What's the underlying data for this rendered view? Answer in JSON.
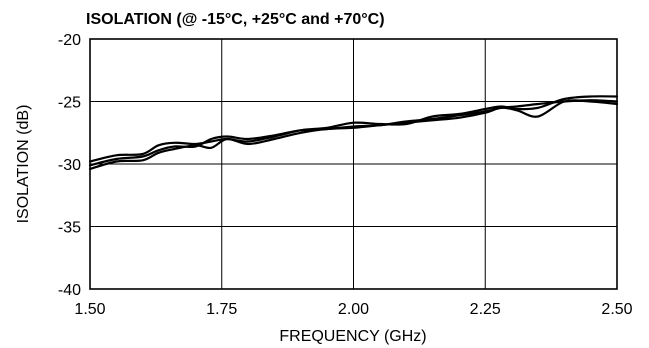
{
  "chart_data": {
    "type": "line",
    "title": "ISOLATION (@ -15°C, +25°C and +70°C)",
    "xlabel": "FREQUENCY (GHz)",
    "ylabel": "ISOLATION (dB)",
    "xlim": [
      1.5,
      2.5
    ],
    "ylim": [
      -40,
      -20
    ],
    "x_ticks": [
      "1.50",
      "1.75",
      "2.00",
      "2.25",
      "2.50"
    ],
    "y_ticks": [
      "-20",
      "-25",
      "-30",
      "-35",
      "-40"
    ],
    "x_tick_values": [
      1.5,
      1.75,
      2.0,
      2.25,
      2.5
    ],
    "y_tick_values": [
      -20,
      -25,
      -30,
      -35,
      -40
    ],
    "grid": true,
    "series": [
      {
        "x": [
          1.5,
          1.55,
          1.6,
          1.63,
          1.66,
          1.7,
          1.73,
          1.76,
          1.8,
          1.85,
          1.9,
          1.95,
          2.0,
          2.05,
          2.1,
          2.15,
          2.2,
          2.25,
          2.28,
          2.31,
          2.35,
          2.4,
          2.45,
          2.5
        ],
        "values": [
          -29.8,
          -29.3,
          -29.2,
          -28.5,
          -28.3,
          -28.4,
          -28.2,
          -28.0,
          -28.2,
          -27.8,
          -27.3,
          -27.1,
          -26.7,
          -26.8,
          -26.8,
          -26.2,
          -26.0,
          -25.6,
          -25.4,
          -25.6,
          -25.5,
          -24.8,
          -24.6,
          -24.6
        ]
      },
      {
        "x": [
          1.5,
          1.55,
          1.6,
          1.63,
          1.66,
          1.7,
          1.73,
          1.76,
          1.8,
          1.85,
          1.9,
          1.95,
          2.0,
          2.05,
          2.1,
          2.15,
          2.2,
          2.25,
          2.28,
          2.31,
          2.35,
          2.4,
          2.45,
          2.5
        ],
        "values": [
          -30.1,
          -29.6,
          -29.4,
          -28.9,
          -28.6,
          -28.6,
          -28.0,
          -27.8,
          -28.0,
          -27.7,
          -27.3,
          -27.2,
          -27.0,
          -26.9,
          -26.6,
          -26.4,
          -26.1,
          -25.8,
          -25.5,
          -25.4,
          -25.2,
          -25.0,
          -24.9,
          -25.0
        ]
      },
      {
        "x": [
          1.5,
          1.55,
          1.6,
          1.63,
          1.66,
          1.7,
          1.73,
          1.76,
          1.8,
          1.85,
          1.9,
          1.95,
          2.0,
          2.05,
          2.1,
          2.15,
          2.2,
          2.25,
          2.28,
          2.31,
          2.35,
          2.4,
          2.45,
          2.5
        ],
        "values": [
          -30.4,
          -29.8,
          -29.7,
          -29.1,
          -28.8,
          -28.5,
          -28.7,
          -28.0,
          -28.4,
          -28.0,
          -27.5,
          -27.2,
          -27.1,
          -26.9,
          -26.7,
          -26.5,
          -26.3,
          -25.9,
          -25.5,
          -25.7,
          -26.2,
          -25.0,
          -25.0,
          -25.2
        ]
      }
    ]
  }
}
